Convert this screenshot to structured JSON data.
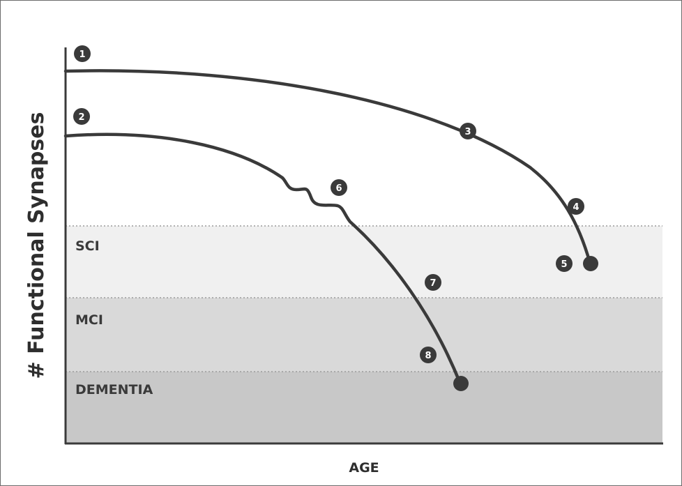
{
  "axes": {
    "y_label": "# Functional Synapses",
    "x_label": "AGE"
  },
  "zones": [
    {
      "label": "SCI",
      "fill": "#f0f0f0"
    },
    {
      "label": "MCI",
      "fill": "#d9d9d9"
    },
    {
      "label": "DEMENTIA",
      "fill": "#c8c8c8"
    }
  ],
  "markers": [
    "1",
    "2",
    "3",
    "4",
    "5",
    "6",
    "7",
    "8"
  ],
  "colors": {
    "curve": "#3a3a3a",
    "marker": "#3a3a3a",
    "axis": "#3a3a3a",
    "divider": "#9a9a9a"
  }
}
